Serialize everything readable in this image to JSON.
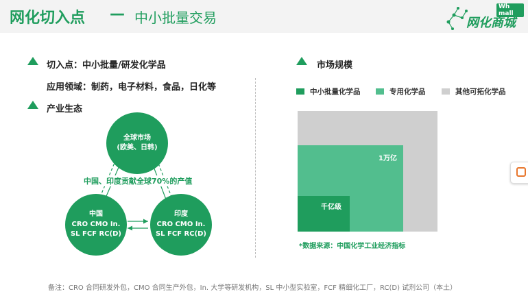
{
  "header": {
    "title_main": "网化切入点",
    "title_dash": "—",
    "title_sub": "中小批量交易",
    "logo_text": "网化商城",
    "logo_badge": "Wh mall"
  },
  "left": {
    "entry_heading": "切入点：中小批量/研发化学品",
    "application_line": "应用领域：制药，电子材料，食品，日化等",
    "ecosystem_heading": "产业生态"
  },
  "ecosystem": {
    "global_line1": "全球市场",
    "global_line2": "(欧美、日韩)",
    "china_lines": [
      "中国",
      "CRO CMO In.",
      "SL FCF RC(D)"
    ],
    "india_lines": [
      "印度",
      "CRO CMO In.",
      "SL FCF RC(D)"
    ],
    "contribution_label": "中国、印度贡献全球70%的产值"
  },
  "market": {
    "heading": "市场规模",
    "legend": [
      {
        "label": "中小批量化学品",
        "color": "#1f9d5d"
      },
      {
        "label": "专用化学品",
        "color": "#52be8e"
      },
      {
        "label": "其他可拓化学品",
        "color": "#cfcfcf"
      }
    ],
    "label_1wan": "1万亿",
    "label_qian": "千亿级",
    "source": "*数据来源：中国化学工业经济指标"
  },
  "footnote": "备注：CRO 合同研发外包，CMO 合同生产外包，In. 大学等研发机构，SL 中小型实验室，FCF 精细化工厂，RC(D) 试剂公司（本土）",
  "colors": {
    "accent": "#1f9d5d",
    "accent_light": "#52be8e",
    "gray": "#cfcfcf"
  }
}
